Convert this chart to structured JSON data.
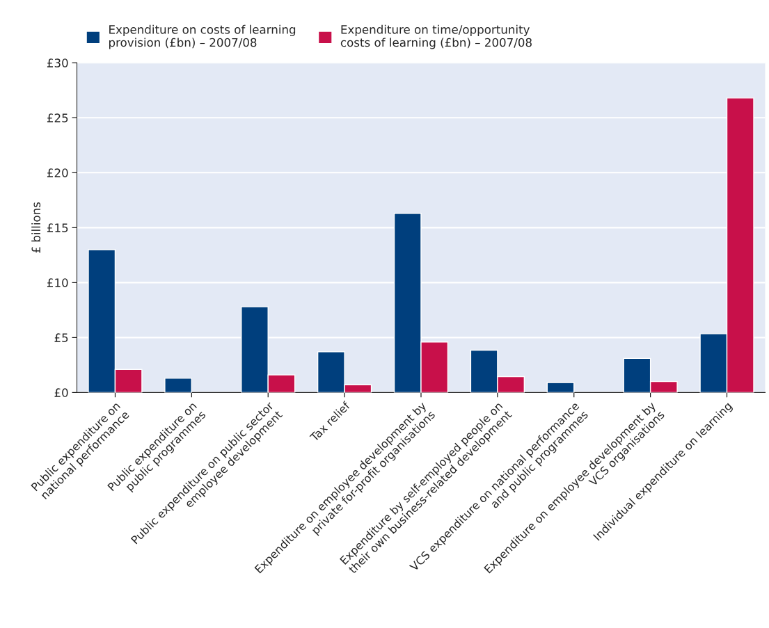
{
  "chart_data": {
    "type": "bar",
    "categories": [
      "Public expenditure on\nnational performance",
      "Public expenditure on\npublic programmes",
      "Public expenditure on public sector\nemployee development",
      "Tax relief",
      "Expenditure on employee development by\nprivate for-profit organisations",
      "Expenditure by self-employed people on\ntheir own business-related development",
      "VCS expenditure on national performance\nand public programmes",
      "Expenditure on employee development by\nVCS organisations",
      "Individual expenditure on learning"
    ],
    "series": [
      {
        "name": "Expenditure on costs of learning\nprovision (£bn) – 2007/08",
        "color": "#003f7d",
        "values": [
          13.0,
          1.3,
          7.8,
          3.7,
          16.3,
          3.85,
          0.9,
          3.1,
          5.35
        ]
      },
      {
        "name": "Expenditure on time/opportunity\ncosts of learning (£bn) – 2007/08",
        "color": "#c8104a",
        "values": [
          2.1,
          null,
          1.6,
          0.7,
          4.6,
          1.45,
          null,
          1.0,
          26.8
        ]
      }
    ],
    "ylabel": "£ billions",
    "ylim": [
      0,
      30
    ],
    "yticks": [
      {
        "value": 0,
        "label": "£0"
      },
      {
        "value": 5,
        "label": "£5"
      },
      {
        "value": 10,
        "label": "£10"
      },
      {
        "value": 15,
        "label": "£15"
      },
      {
        "value": 20,
        "label": "£20"
      },
      {
        "value": 25,
        "label": "£25"
      },
      {
        "value": 30,
        "label": "£30"
      }
    ],
    "grid": "y",
    "legend": "top left"
  }
}
